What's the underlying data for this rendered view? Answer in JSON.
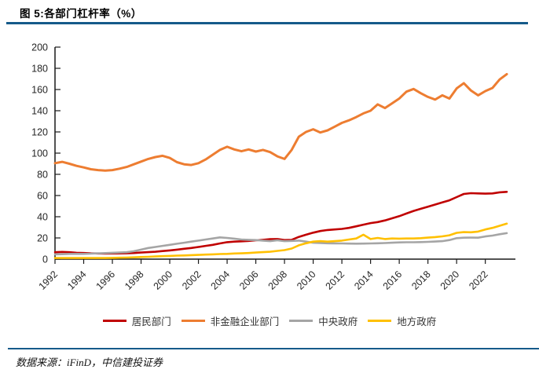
{
  "header": {
    "title": "图 5:各部门杠杆率（%）"
  },
  "footer": {
    "source_text": "数据来源：iFinD，中信建投证券"
  },
  "colors": {
    "accent_rule": "#155a8a",
    "axis": "#1a1a1a",
    "tick_label": "#262626",
    "household": "#C00000",
    "non_financial_corporate": "#ED7D31",
    "central_government": "#A5A5A5",
    "local_government": "#FFC000"
  },
  "chart_data": {
    "type": "line",
    "title": "各部门杠杆率（%）",
    "xlabel": "",
    "ylabel": "",
    "grid": false,
    "legend_position": "bottom",
    "xlim": [
      1992,
      2024.1
    ],
    "ylim": [
      0,
      200
    ],
    "yticks": [
      0,
      20,
      40,
      60,
      80,
      100,
      120,
      140,
      160,
      180,
      200
    ],
    "xticks": [
      1992,
      1994,
      1996,
      1998,
      2000,
      2002,
      2004,
      2006,
      2008,
      2010,
      2012,
      2014,
      2016,
      2018,
      2020,
      2022
    ],
    "x": [
      1992,
      1992.5,
      1993,
      1993.5,
      1994,
      1994.5,
      1995,
      1995.5,
      1996,
      1996.5,
      1997,
      1997.5,
      1998,
      1998.5,
      1999,
      1999.5,
      2000,
      2000.5,
      2001,
      2001.5,
      2002,
      2002.5,
      2003,
      2003.5,
      2004,
      2004.5,
      2005,
      2005.5,
      2006,
      2006.5,
      2007,
      2007.5,
      2008,
      2008.5,
      2009,
      2009.5,
      2010,
      2010.5,
      2011,
      2011.5,
      2012,
      2012.5,
      2013,
      2013.5,
      2014,
      2014.5,
      2015,
      2015.5,
      2016,
      2016.5,
      2017,
      2017.5,
      2018,
      2018.5,
      2019,
      2019.5,
      2020,
      2020.5,
      2021,
      2021.5,
      2022,
      2022.5,
      2023,
      2023.5
    ],
    "series": [
      {
        "key": "household",
        "name": "居民部门",
        "color": "#C00000",
        "values": [
          6.5,
          6.8,
          6.5,
          6.0,
          5.8,
          5.5,
          5.3,
          5.2,
          5.3,
          5.4,
          5.5,
          5.8,
          6.2,
          6.6,
          7.0,
          7.6,
          8.2,
          9.0,
          9.8,
          10.5,
          11.5,
          12.5,
          13.5,
          14.8,
          16.0,
          16.5,
          16.8,
          17.2,
          17.8,
          18.2,
          18.8,
          19.0,
          18.0,
          18.2,
          21.0,
          23.0,
          25.0,
          26.5,
          27.5,
          28.0,
          28.5,
          29.5,
          31.0,
          32.5,
          34.0,
          35.0,
          36.5,
          38.5,
          40.5,
          43.0,
          45.5,
          47.5,
          49.5,
          51.5,
          53.5,
          55.5,
          58.5,
          61.5,
          62.2,
          62.0,
          61.8,
          62.0,
          63.0,
          63.5
        ]
      },
      {
        "key": "non_financial_corporate",
        "name": "非金融企业部门",
        "color": "#ED7D31",
        "values": [
          90.5,
          91.8,
          90.0,
          88.0,
          86.5,
          84.8,
          84.0,
          83.5,
          84.0,
          85.3,
          87.0,
          89.5,
          92.0,
          94.5,
          96.3,
          97.5,
          95.5,
          91.5,
          89.5,
          88.8,
          90.5,
          94.0,
          98.5,
          103.0,
          106.0,
          103.5,
          101.8,
          103.5,
          101.5,
          103.0,
          101.0,
          97.0,
          94.5,
          103.0,
          115.5,
          120.0,
          122.5,
          119.5,
          121.5,
          125.0,
          128.5,
          131.0,
          134.0,
          137.5,
          140.0,
          146.0,
          142.5,
          147.0,
          151.5,
          158.0,
          160.5,
          156.5,
          153.0,
          150.5,
          154.5,
          151.5,
          161.0,
          166.0,
          159.0,
          154.5,
          158.5,
          161.5,
          169.5,
          174.5
        ]
      },
      {
        "key": "central_government",
        "name": "中央政府",
        "color": "#A5A5A5",
        "values": [
          4.5,
          4.7,
          5.0,
          5.0,
          5.0,
          5.2,
          5.5,
          5.7,
          6.0,
          6.2,
          6.5,
          7.5,
          9.0,
          10.5,
          11.5,
          12.5,
          13.5,
          14.5,
          15.5,
          16.5,
          17.5,
          18.5,
          19.5,
          20.5,
          20.0,
          19.3,
          18.5,
          18.2,
          18.0,
          17.5,
          17.0,
          17.8,
          17.0,
          17.2,
          17.5,
          16.5,
          15.5,
          15.2,
          15.0,
          14.9,
          14.8,
          14.7,
          14.6,
          14.7,
          14.8,
          15.0,
          15.2,
          15.5,
          15.8,
          15.9,
          15.9,
          16.1,
          16.3,
          16.6,
          17.0,
          18.0,
          19.8,
          20.2,
          20.3,
          20.2,
          21.4,
          22.2,
          23.5,
          24.5
        ]
      },
      {
        "key": "local_government",
        "name": "地方政府",
        "color": "#FFC000",
        "values": [
          1.0,
          1.0,
          1.0,
          1.0,
          1.0,
          1.0,
          1.0,
          1.0,
          1.2,
          1.3,
          1.5,
          1.7,
          2.0,
          2.2,
          2.5,
          2.8,
          3.0,
          3.3,
          3.5,
          3.8,
          4.0,
          4.3,
          4.5,
          4.8,
          5.0,
          5.3,
          5.5,
          5.8,
          6.2,
          6.6,
          7.0,
          7.8,
          8.5,
          10.0,
          13.0,
          15.0,
          16.5,
          17.0,
          16.5,
          17.0,
          17.5,
          18.5,
          19.5,
          23.0,
          19.0,
          20.0,
          19.0,
          19.5,
          19.3,
          19.5,
          19.5,
          19.8,
          20.3,
          20.8,
          21.5,
          22.5,
          24.8,
          25.5,
          25.3,
          26.0,
          28.0,
          29.5,
          31.5,
          33.5
        ]
      }
    ]
  }
}
